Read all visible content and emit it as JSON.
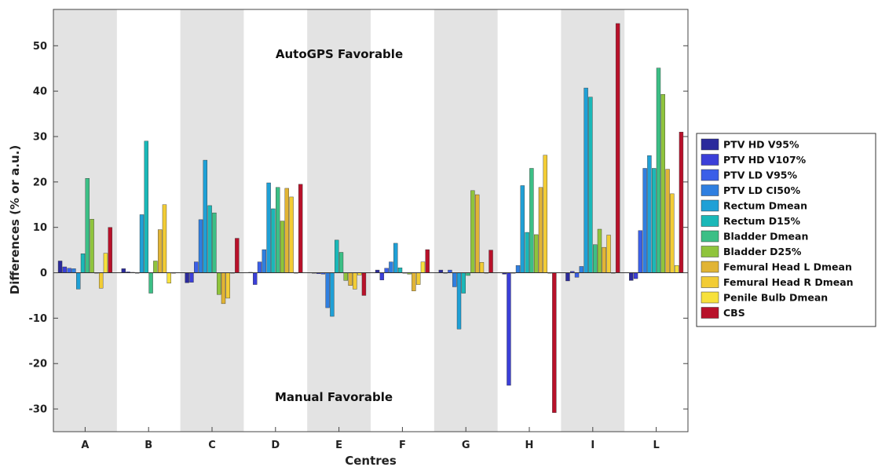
{
  "chart_data": {
    "type": "bar",
    "xlabel": "Centres",
    "ylabel": "Differences (% or a.u.)",
    "ylim": [
      -35,
      58
    ],
    "yticks": [
      -30,
      -20,
      -10,
      0,
      10,
      20,
      30,
      40,
      50
    ],
    "grid": false,
    "legend_position": "right",
    "annotations": {
      "top": "AutoGPS Favorable",
      "bottom": "Manual Favorable"
    },
    "shaded_categories": [
      "A",
      "C",
      "E",
      "G",
      "I"
    ],
    "categories": [
      "A",
      "B",
      "C",
      "D",
      "E",
      "F",
      "G",
      "H",
      "I",
      "L"
    ],
    "series": [
      {
        "name": "PTV HD V95%",
        "color": "#2b2a9c",
        "values": [
          2.6,
          0.9,
          -2.2,
          0.1,
          -0.1,
          0.6,
          0.6,
          -0.3,
          -1.8,
          -1.7
        ]
      },
      {
        "name": "PTV HD V107%",
        "color": "#3b3fd8",
        "values": [
          1.3,
          0.2,
          -2.1,
          -2.6,
          -0.2,
          -1.6,
          0.0,
          -24.8,
          0.3,
          -1.3
        ]
      },
      {
        "name": "PTV LD V95%",
        "color": "#3a5fe8",
        "values": [
          1.0,
          0.1,
          2.4,
          2.4,
          -0.3,
          1.0,
          0.6,
          0.0,
          -1.0,
          9.3
        ]
      },
      {
        "name": "PTV LD CI50%",
        "color": "#2f7fe0",
        "values": [
          0.9,
          0.0,
          11.7,
          5.1,
          -7.7,
          2.4,
          -3.1,
          1.6,
          1.4,
          23.0
        ]
      },
      {
        "name": "Rectum Dmean",
        "color": "#1fa0d6",
        "values": [
          -3.6,
          12.8,
          24.8,
          19.8,
          -9.6,
          6.5,
          -12.4,
          19.2,
          40.7,
          25.8
        ]
      },
      {
        "name": "Rectum D15%",
        "color": "#1ab8b8",
        "values": [
          4.2,
          29.0,
          14.8,
          14.1,
          7.2,
          1.1,
          -4.5,
          8.9,
          38.7,
          23.0
        ]
      },
      {
        "name": "Bladder Dmean",
        "color": "#3cbf86",
        "values": [
          20.8,
          -4.5,
          13.2,
          18.8,
          4.5,
          0.0,
          -0.6,
          23.0,
          6.2,
          45.1
        ]
      },
      {
        "name": "Bladder D25%",
        "color": "#8fc43c",
        "values": [
          11.8,
          2.6,
          -4.8,
          11.4,
          -1.7,
          -0.3,
          18.1,
          8.4,
          9.6,
          39.3
        ]
      },
      {
        "name": "Femural Head L Dmean",
        "color": "#e1b435",
        "values": [
          0.0,
          9.5,
          -6.8,
          18.6,
          -2.8,
          -4.0,
          17.2,
          18.8,
          5.6,
          22.8
        ]
      },
      {
        "name": "Femural Head R Dmean",
        "color": "#f2cc35",
        "values": [
          -3.4,
          15.0,
          -5.6,
          16.7,
          -3.6,
          -2.6,
          2.3,
          25.9,
          8.3,
          17.4
        ]
      },
      {
        "name": "Penile Bulb Dmean",
        "color": "#f7e13c",
        "values": [
          4.3,
          -2.3,
          0.0,
          0.0,
          -0.5,
          2.4,
          0.0,
          0.0,
          0.0,
          1.6
        ]
      },
      {
        "name": "CBS",
        "color": "#b8112a",
        "values": [
          10.0,
          0.0,
          7.6,
          19.5,
          -5.0,
          5.1,
          5.0,
          -30.8,
          54.9,
          31.0
        ]
      }
    ]
  }
}
